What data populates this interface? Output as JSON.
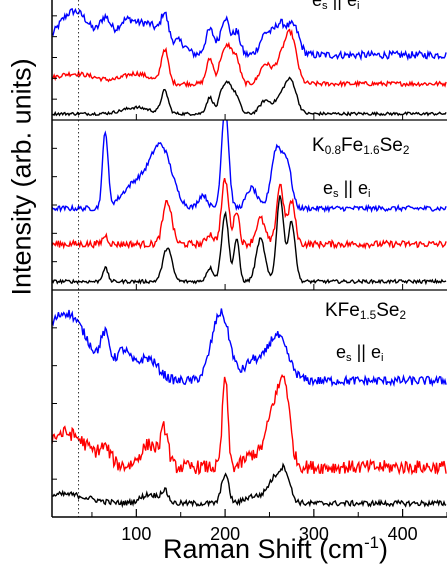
{
  "chart_data": {
    "type": "line",
    "xlabel": "Raman Shift (cm",
    "xlabel_unit_sup": "-1",
    "xlabel_close": ")",
    "ylabel": "Intensity (arb. units)",
    "xlim": [
      5,
      450
    ],
    "x_ticks": [
      "100",
      "200",
      "300",
      "400"
    ],
    "x_tick_values": [
      100,
      200,
      300,
      400
    ],
    "dotted_line_x": 35,
    "series_colors": [
      "#0000ff",
      "#ff0000",
      "#000000"
    ],
    "panels": [
      {
        "label_top": "",
        "label_bottom_parts": [
          "e",
          "s",
          " || e",
          "i"
        ],
        "ylim": [
          0,
          10
        ],
        "series": [
          {
            "color": "#0000ff",
            "peaks": [
              [
                30,
                3.5,
                20
              ],
              [
                65,
                2.0,
                6
              ],
              [
                85,
                1.5,
                10
              ],
              [
                100,
                1.8,
                15
              ],
              [
                120,
                1.5,
                12
              ],
              [
                132,
                2.2,
                4
              ],
              [
                148,
                1.0,
                8
              ],
              [
                183,
                2.0,
                5
              ],
              [
                200,
                3.0,
                5
              ],
              [
                213,
                1.8,
                4
              ],
              [
                245,
                1.5,
                6
              ],
              [
                262,
                2.5,
                8
              ],
              [
                278,
                2.0,
                6
              ]
            ],
            "baseline": 5.2,
            "noise": 0.3
          },
          {
            "color": "#ff0000",
            "peaks": [
              [
                30,
                0.8,
                25
              ],
              [
                100,
                0.8,
                15
              ],
              [
                132,
                2.7,
                4
              ],
              [
                183,
                2.0,
                4
              ],
              [
                195,
                1.2,
                3
              ],
              [
                203,
                3.0,
                5
              ],
              [
                213,
                1.8,
                4
              ],
              [
                245,
                1.5,
                6
              ],
              [
                265,
                2.2,
                8
              ],
              [
                275,
                3.0,
                6
              ]
            ],
            "baseline": 2.9,
            "noise": 0.18
          },
          {
            "color": "#000000",
            "peaks": [
              [
                100,
                0.5,
                15
              ],
              [
                132,
                1.8,
                4
              ],
              [
                183,
                1.3,
                4
              ],
              [
                195,
                1.0,
                3
              ],
              [
                203,
                2.5,
                5
              ],
              [
                213,
                1.2,
                4
              ],
              [
                245,
                1.0,
                6
              ],
              [
                265,
                1.5,
                8
              ],
              [
                275,
                2.0,
                6
              ]
            ],
            "baseline": 0.5,
            "noise": 0.12
          }
        ]
      },
      {
        "label_top_parts": [
          "K",
          "0.8",
          "Fe",
          "1.6",
          "Se",
          "2"
        ],
        "label_bottom_parts": [
          "e",
          "s",
          " || e",
          "i"
        ],
        "ylim": [
          0,
          10
        ],
        "series": [
          {
            "color": "#0000ff",
            "peaks": [
              [
                65,
                4.5,
                3
              ],
              [
                100,
                1.5,
                15
              ],
              [
                128,
                3.5,
                12
              ],
              [
                175,
                0.8,
                5
              ],
              [
                200,
                6.0,
                4
              ],
              [
                230,
                1.2,
                6
              ],
              [
                258,
                3.5,
                6
              ],
              [
                270,
                2.5,
                5
              ]
            ],
            "baseline": 4.8,
            "noise": 0.15
          },
          {
            "color": "#ff0000",
            "peaks": [
              [
                65,
                0.5,
                3
              ],
              [
                135,
                2.5,
                5
              ],
              [
                183,
                0.6,
                4
              ],
              [
                200,
                3.8,
                4
              ],
              [
                213,
                2.0,
                3
              ],
              [
                240,
                1.5,
                5
              ],
              [
                262,
                3.5,
                4
              ],
              [
                275,
                2.5,
                4
              ]
            ],
            "baseline": 2.7,
            "noise": 0.2
          },
          {
            "color": "#000000",
            "peaks": [
              [
                65,
                0.8,
                3
              ],
              [
                135,
                2.0,
                5
              ],
              [
                183,
                0.8,
                4
              ],
              [
                200,
                4.0,
                4
              ],
              [
                213,
                2.5,
                3
              ],
              [
                240,
                2.5,
                5
              ],
              [
                262,
                5.0,
                4
              ],
              [
                275,
                3.5,
                4
              ]
            ],
            "baseline": 0.5,
            "noise": 0.1
          }
        ]
      },
      {
        "label_top_parts": [
          "KFe",
          "1.5",
          "Se",
          "2"
        ],
        "label_bottom_parts": [
          "e",
          "s",
          " || e",
          "i"
        ],
        "ylim": [
          0,
          10
        ],
        "series": [
          {
            "color": "#0000ff",
            "peaks": [
              [
                20,
                3.0,
                25
              ],
              [
                65,
                1.5,
                5
              ],
              [
                85,
                1.2,
                8
              ],
              [
                112,
                1.0,
                12
              ],
              [
                195,
                3.0,
                10
              ],
              [
                230,
                0.8,
                8
              ],
              [
                258,
                2.0,
                12
              ]
            ],
            "baseline": 6.0,
            "noise": 0.2
          },
          {
            "color": "#ff0000",
            "peaks": [
              [
                20,
                1.5,
                25
              ],
              [
                65,
                0.6,
                6
              ],
              [
                115,
                1.0,
                10
              ],
              [
                132,
                1.5,
                4
              ],
              [
                200,
                4.0,
                3
              ],
              [
                230,
                0.5,
                8
              ],
              [
                258,
                3.0,
                10
              ],
              [
                268,
                2.0,
                5
              ]
            ],
            "baseline": 2.2,
            "noise": 0.3
          },
          {
            "color": "#000000",
            "peaks": [
              [
                20,
                0.4,
                25
              ],
              [
                115,
                0.4,
                10
              ],
              [
                132,
                0.5,
                4
              ],
              [
                200,
                1.3,
                4
              ],
              [
                230,
                0.3,
                8
              ],
              [
                258,
                1.2,
                10
              ],
              [
                268,
                0.8,
                5
              ]
            ],
            "baseline": 0.6,
            "noise": 0.12
          }
        ]
      }
    ]
  }
}
